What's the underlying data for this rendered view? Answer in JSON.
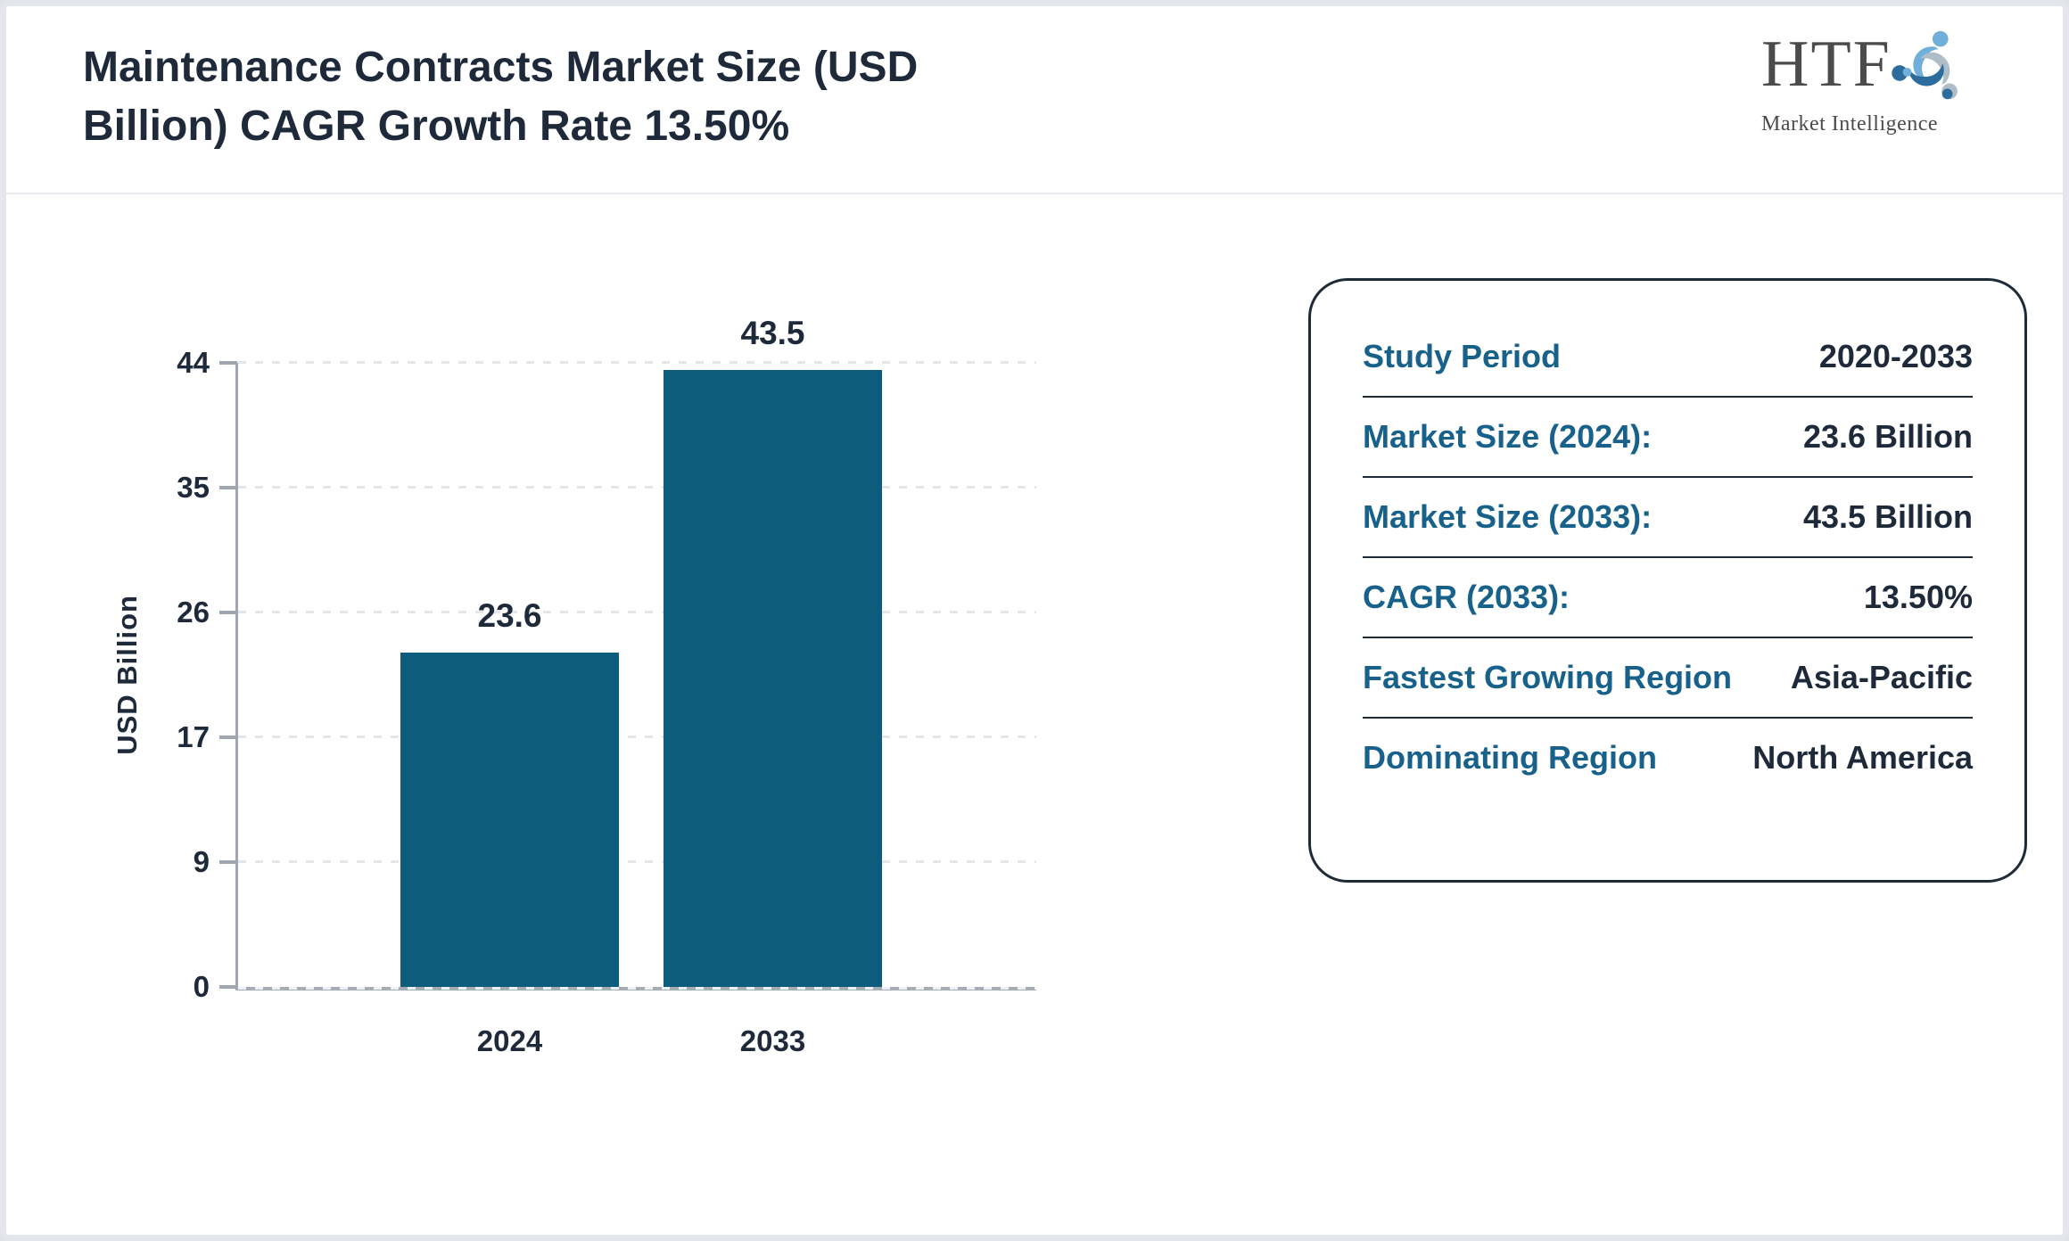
{
  "header": {
    "title": "Maintenance Contracts Market Size (USD Billion) CAGR Growth Rate 13.50%"
  },
  "logo": {
    "text": "HTF",
    "subtext": "Market Intelligence"
  },
  "chart_data": {
    "type": "bar",
    "categories": [
      "2024",
      "2033"
    ],
    "values": [
      23.6,
      43.5
    ],
    "value_labels": [
      "23.6",
      "43.5"
    ],
    "title": "Maintenance Contracts Market Size (USD Billion)",
    "xlabel": "",
    "ylabel": "USD Billion",
    "yticks": [
      "0",
      "9",
      "17",
      "26",
      "35",
      "44"
    ],
    "ylim": [
      0,
      44
    ],
    "grid": "dashed-horizontal",
    "legend": "none",
    "bar_color": "#0d5c7e"
  },
  "info_card": {
    "rows": [
      {
        "label": "Study Period",
        "value": "2020-2033"
      },
      {
        "label": "Market Size (2024):",
        "value": "23.6 Billion"
      },
      {
        "label": "Market Size (2033):",
        "value": "43.5 Billion"
      },
      {
        "label": "CAGR (2033):",
        "value": "13.50%"
      },
      {
        "label": "Fastest Growing Region",
        "value": "Asia-Pacific"
      },
      {
        "label": "Dominating Region",
        "value": "North America"
      }
    ]
  },
  "colors": {
    "bar": "#0d5c7e",
    "accent_teal": "#17618a",
    "navy": "#1e2a3a",
    "axis_gray": "#a0a7b0",
    "grid_gray": "#e4e6ea",
    "logo_light_blue": "#6fafd9",
    "logo_gray": "#aebdc7",
    "logo_dark_blue": "#2d6d9e"
  }
}
